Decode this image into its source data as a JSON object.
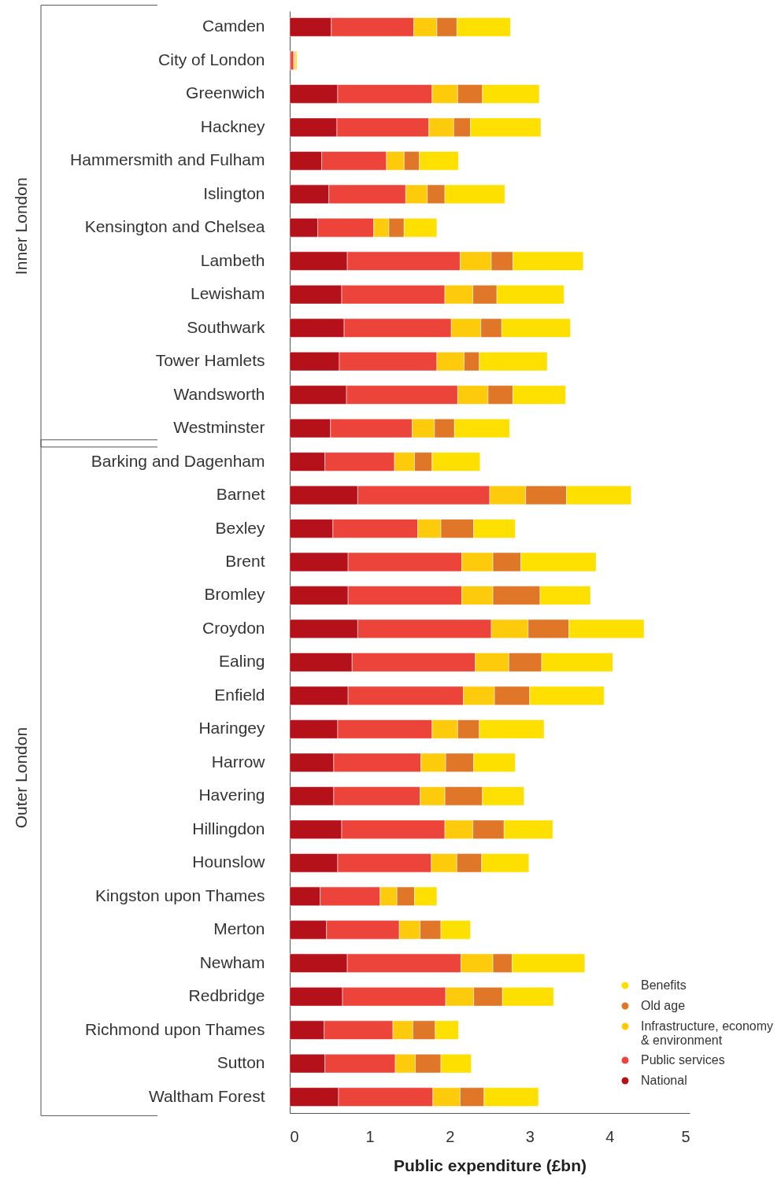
{
  "chart_data": {
    "type": "bar",
    "orientation": "horizontal",
    "stacked": true,
    "xlabel": "Public expenditure (£bn)",
    "categories": [
      "Camden",
      "City of London",
      "Greenwich",
      "Hackney",
      "Hammersmith and Fulham",
      "Islington",
      "Kensington and Chelsea",
      "Lambeth",
      "Lewisham",
      "Southwark",
      "Tower Hamlets",
      "Wandsworth",
      "Westminster",
      "Barking and Dagenham",
      "Barnet",
      "Bexley",
      "Brent",
      "Bromley",
      "Croydon",
      "Ealing",
      "Enfield",
      "Haringey",
      "Harrow",
      "Havering",
      "Hillingdon",
      "Hounslow",
      "Kingston upon Thames",
      "Merton",
      "Newham",
      "Redbridge",
      "Richmond upon Thames",
      "Sutton",
      "Waltham Forest"
    ],
    "series": [
      {
        "name": "National",
        "color": "#b5111a",
        "values": [
          0.52,
          0.01,
          0.6,
          0.59,
          0.4,
          0.49,
          0.35,
          0.72,
          0.65,
          0.68,
          0.62,
          0.71,
          0.51,
          0.44,
          0.85,
          0.54,
          0.73,
          0.73,
          0.85,
          0.78,
          0.73,
          0.6,
          0.55,
          0.55,
          0.65,
          0.6,
          0.38,
          0.46,
          0.72,
          0.66,
          0.43,
          0.44,
          0.61
        ]
      },
      {
        "name": "Public services",
        "color": "#ec433a",
        "values": [
          1.03,
          0.04,
          1.18,
          1.15,
          0.81,
          0.96,
          0.7,
          1.41,
          1.29,
          1.34,
          1.22,
          1.39,
          1.02,
          0.87,
          1.65,
          1.06,
          1.42,
          1.42,
          1.67,
          1.54,
          1.44,
          1.18,
          1.09,
          1.08,
          1.29,
          1.17,
          0.75,
          0.91,
          1.42,
          1.29,
          0.86,
          0.88,
          1.18
        ]
      },
      {
        "name": "Infrastructure, economy & environment",
        "color": "#fdcb0b",
        "values": [
          0.29,
          0.01,
          0.32,
          0.31,
          0.22,
          0.27,
          0.19,
          0.39,
          0.35,
          0.37,
          0.34,
          0.38,
          0.28,
          0.25,
          0.45,
          0.29,
          0.39,
          0.39,
          0.46,
          0.42,
          0.39,
          0.32,
          0.31,
          0.31,
          0.35,
          0.32,
          0.21,
          0.26,
          0.4,
          0.35,
          0.25,
          0.25,
          0.34
        ]
      },
      {
        "name": "Old age",
        "color": "#df7628",
        "values": [
          0.25,
          0.01,
          0.31,
          0.21,
          0.19,
          0.22,
          0.19,
          0.27,
          0.3,
          0.26,
          0.19,
          0.31,
          0.25,
          0.22,
          0.51,
          0.41,
          0.35,
          0.59,
          0.51,
          0.41,
          0.44,
          0.27,
          0.35,
          0.47,
          0.39,
          0.31,
          0.22,
          0.26,
          0.24,
          0.36,
          0.28,
          0.32,
          0.3
        ]
      },
      {
        "name": "Benefits",
        "color": "#fee000",
        "values": [
          0.67,
          0.02,
          0.71,
          0.88,
          0.49,
          0.75,
          0.41,
          0.88,
          0.84,
          0.86,
          0.85,
          0.66,
          0.69,
          0.6,
          0.81,
          0.52,
          0.94,
          0.63,
          0.94,
          0.89,
          0.93,
          0.81,
          0.52,
          0.52,
          0.61,
          0.59,
          0.28,
          0.37,
          0.91,
          0.64,
          0.29,
          0.38,
          0.68
        ]
      }
    ],
    "xlim": [
      0,
      5
    ],
    "xticks": [
      0,
      1,
      2,
      3,
      4,
      5
    ],
    "grid": false,
    "legend": "bottom right",
    "annotations": [
      "Inner London",
      "Outer London"
    ]
  }
}
